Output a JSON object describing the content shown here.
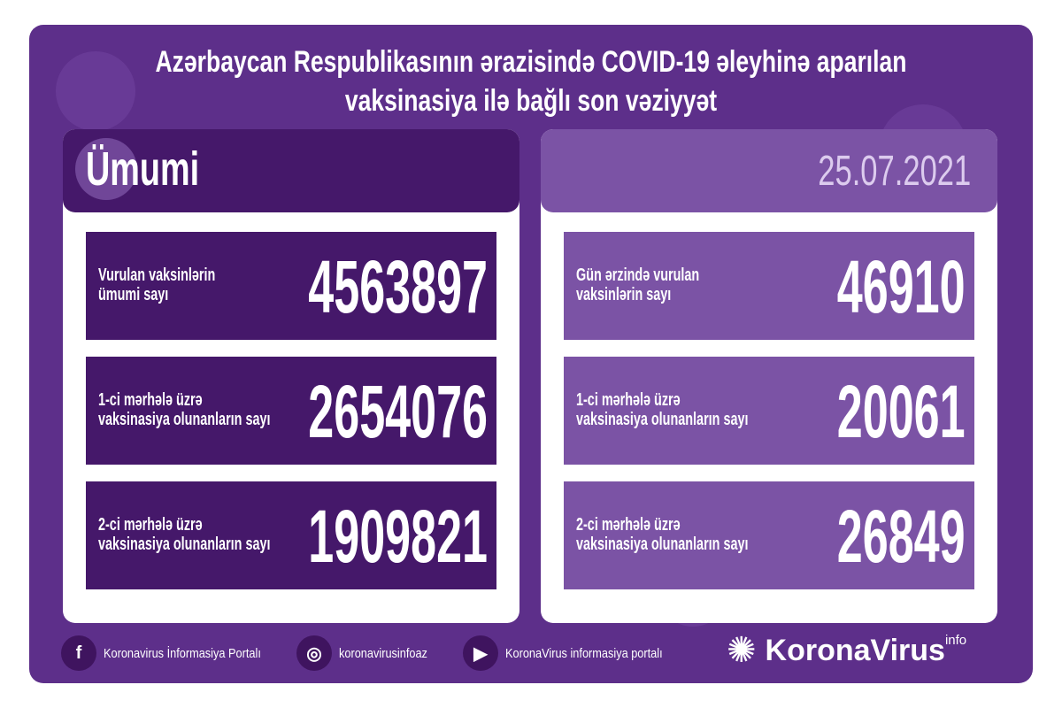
{
  "title": {
    "line1": "Azərbaycan Respublikasının ərazisində COVID-19 əleyhinə aparılan",
    "line2": "vaksinasiya ilə bağlı son vəziyyət"
  },
  "colors": {
    "background": "#5d2f8a",
    "dark_box": "#45186a",
    "light_box": "#7b53a5",
    "date_text": "#dccbee"
  },
  "left": {
    "heading": "Ümumi",
    "items": [
      {
        "label1": "Vurulan vaksinlərin",
        "label2": "ümumi sayı",
        "value": "4563897"
      },
      {
        "label1": "1-ci mərhələ üzrə",
        "label2": "vaksinasiya olunanların sayı",
        "value": "2654076"
      },
      {
        "label1": "2-ci mərhələ üzrə",
        "label2": "vaksinasiya olunanların sayı",
        "value": "1909821"
      }
    ]
  },
  "right": {
    "date": "25.07.2021",
    "items": [
      {
        "label1": "Gün ərzində vurulan",
        "label2": "vaksinlərin sayı",
        "value": "46910"
      },
      {
        "label1": "1-ci mərhələ üzrə",
        "label2": "vaksinasiya olunanların sayı",
        "value": "20061"
      },
      {
        "label1": "2-ci mərhələ üzrə",
        "label2": "vaksinasiya olunanların sayı",
        "value": "26849"
      }
    ]
  },
  "footer": {
    "facebook": "Koronavirus İnformasiya Portalı",
    "instagram": "koronavirusinfoaz",
    "youtube": "KoronaVirus informasiya portalı",
    "brand": "KoronaVirus",
    "brand_sup": "info",
    "icons": [
      "facebook-icon",
      "instagram-icon",
      "youtube-icon",
      "virus-logo-icon"
    ]
  }
}
